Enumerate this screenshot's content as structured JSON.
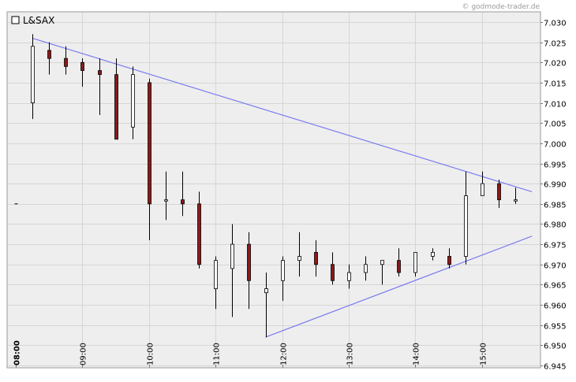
{
  "chart_data": {
    "type": "candlestick",
    "legend": "L&SAX",
    "copyright": "© godmode-trader.de",
    "x_ticks": [
      "08:00",
      "09:00",
      "10:00",
      "11:00",
      "12:00",
      "13:00",
      "14:00",
      "15:00"
    ],
    "y_ticks": [
      "7.030",
      "7.025",
      "7.020",
      "7.015",
      "7.010",
      "7.005",
      "7.000",
      "6.995",
      "6.990",
      "6.985",
      "6.980",
      "6.975",
      "6.970",
      "6.965",
      "6.960",
      "6.955",
      "6.950",
      "6.945"
    ],
    "ylim": [
      6.945,
      7.032
    ],
    "grid": true,
    "candles": [
      {
        "t": "08:00",
        "o": 6.985,
        "h": 6.985,
        "l": 6.985,
        "c": 6.985
      },
      {
        "t": "08:15",
        "o": 7.01,
        "h": 7.027,
        "l": 7.006,
        "c": 7.024
      },
      {
        "t": "08:30",
        "o": 7.023,
        "h": 7.025,
        "l": 7.017,
        "c": 7.021
      },
      {
        "t": "08:45",
        "o": 7.021,
        "h": 7.024,
        "l": 7.017,
        "c": 7.019
      },
      {
        "t": "09:00",
        "o": 7.02,
        "h": 7.021,
        "l": 7.014,
        "c": 7.018
      },
      {
        "t": "09:15",
        "o": 7.018,
        "h": 7.021,
        "l": 7.007,
        "c": 7.017
      },
      {
        "t": "09:30",
        "o": 7.017,
        "h": 7.021,
        "l": 7.001,
        "c": 7.001
      },
      {
        "t": "09:45",
        "o": 7.004,
        "h": 7.019,
        "l": 7.001,
        "c": 7.017
      },
      {
        "t": "10:00",
        "o": 7.015,
        "h": 7.016,
        "l": 6.976,
        "c": 6.985
      },
      {
        "t": "10:15",
        "o": 6.986,
        "h": 6.993,
        "l": 6.981,
        "c": 6.986
      },
      {
        "t": "10:30",
        "o": 6.986,
        "h": 6.993,
        "l": 6.982,
        "c": 6.985
      },
      {
        "t": "10:45",
        "o": 6.985,
        "h": 6.988,
        "l": 6.969,
        "c": 6.97
      },
      {
        "t": "11:00",
        "o": 6.964,
        "h": 6.972,
        "l": 6.959,
        "c": 6.971
      },
      {
        "t": "11:15",
        "o": 6.969,
        "h": 6.98,
        "l": 6.957,
        "c": 6.975
      },
      {
        "t": "11:30",
        "o": 6.975,
        "h": 6.978,
        "l": 6.959,
        "c": 6.966
      },
      {
        "t": "11:45",
        "o": 6.963,
        "h": 6.968,
        "l": 6.952,
        "c": 6.964
      },
      {
        "t": "12:00",
        "o": 6.966,
        "h": 6.972,
        "l": 6.961,
        "c": 6.971
      },
      {
        "t": "12:15",
        "o": 6.971,
        "h": 6.978,
        "l": 6.967,
        "c": 6.972
      },
      {
        "t": "12:30",
        "o": 6.973,
        "h": 6.976,
        "l": 6.967,
        "c": 6.97
      },
      {
        "t": "12:45",
        "o": 6.97,
        "h": 6.973,
        "l": 6.965,
        "c": 6.966
      },
      {
        "t": "13:00",
        "o": 6.966,
        "h": 6.97,
        "l": 6.964,
        "c": 6.968
      },
      {
        "t": "13:15",
        "o": 6.968,
        "h": 6.972,
        "l": 6.966,
        "c": 6.97
      },
      {
        "t": "13:30",
        "o": 6.97,
        "h": 6.971,
        "l": 6.965,
        "c": 6.971
      },
      {
        "t": "13:45",
        "o": 6.971,
        "h": 6.974,
        "l": 6.967,
        "c": 6.968
      },
      {
        "t": "14:00",
        "o": 6.968,
        "h": 6.973,
        "l": 6.967,
        "c": 6.973
      },
      {
        "t": "14:15",
        "o": 6.972,
        "h": 6.974,
        "l": 6.971,
        "c": 6.973
      },
      {
        "t": "14:30",
        "o": 6.972,
        "h": 6.974,
        "l": 6.969,
        "c": 6.97
      },
      {
        "t": "14:45",
        "o": 6.972,
        "h": 6.993,
        "l": 6.97,
        "c": 6.987
      },
      {
        "t": "15:00",
        "o": 6.987,
        "h": 6.993,
        "l": 6.987,
        "c": 6.99
      },
      {
        "t": "15:15",
        "o": 6.99,
        "h": 6.991,
        "l": 6.984,
        "c": 6.986
      },
      {
        "t": "15:30",
        "o": 6.986,
        "h": 6.989,
        "l": 6.985,
        "c": 6.986
      }
    ],
    "trendlines": [
      {
        "name": "upper",
        "from": {
          "t": "08:15",
          "y": 7.026
        },
        "to": {
          "t": "15:45",
          "y": 6.988
        }
      },
      {
        "name": "lower",
        "from": {
          "t": "11:45",
          "y": 6.952
        },
        "to": {
          "t": "15:45",
          "y": 6.977
        }
      }
    ],
    "colors": {
      "up_fill": "#ffffff",
      "down_fill": "#8b1a1a",
      "candle_outline": "#000000",
      "trendline": "#7b7bf0",
      "plot_bg": "#eeeeee",
      "grid": "#d6d6d6"
    }
  }
}
